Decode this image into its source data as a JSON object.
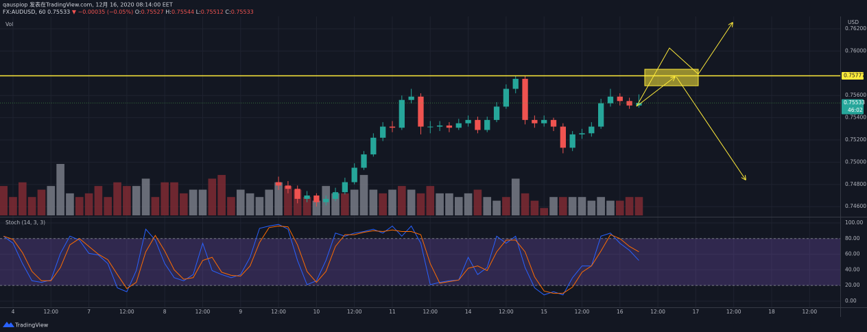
{
  "header": {
    "line1": "qauspiop 发表在TradingView.com, 12月 16, 2020 08:14:00 EET",
    "symbol": "FX:AUDUSD, 60",
    "price": "0.75533",
    "change": "▼ −0.00035 (−0.05%)",
    "ohlc": [
      {
        "label": "O:",
        "value": "0.75527"
      },
      {
        "label": "H:",
        "value": "0.75544"
      },
      {
        "label": "L:",
        "value": "0.75512"
      },
      {
        "label": "C:",
        "value": "0.75533"
      }
    ]
  },
  "footer": {
    "brand": "TradingView"
  },
  "chart_data": [
    {
      "type": "candlestick",
      "currency": "USD",
      "up_color": "#26a69a",
      "down_color": "#ef5350",
      "xlim": [
        -4.12,
        261.7
      ],
      "ylim": [
        0.74515,
        0.76305
      ],
      "yticks": [
        {
          "value": 0.746,
          "label": "0.74600"
        },
        {
          "value": 0.748,
          "label": "0.74800"
        },
        {
          "value": 0.75,
          "label": "0.75000"
        },
        {
          "value": 0.752,
          "label": "0.75200"
        },
        {
          "value": 0.754,
          "label": "0.75400"
        },
        {
          "value": 0.756,
          "label": "0.75600"
        },
        {
          "value": 0.76,
          "label": "0.76000"
        },
        {
          "value": 0.762,
          "label": "0.76200"
        }
      ],
      "candles": [
        [
          84,
          0.7482,
          0.7487,
          0.7475,
          0.7479
        ],
        [
          87,
          0.7479,
          0.7483,
          0.7472,
          0.7476
        ],
        [
          90,
          0.7476,
          0.7479,
          0.7463,
          0.7467
        ],
        [
          93,
          0.7467,
          0.7474,
          0.7464,
          0.747
        ],
        [
          96,
          0.747,
          0.7472,
          0.746,
          0.7464
        ],
        [
          99,
          0.7464,
          0.747,
          0.7461,
          0.7467
        ],
        [
          102,
          0.7467,
          0.7477,
          0.7465,
          0.7473
        ],
        [
          105,
          0.7473,
          0.7486,
          0.7471,
          0.7482
        ],
        [
          108,
          0.7482,
          0.7499,
          0.748,
          0.7495
        ],
        [
          111,
          0.7495,
          0.751,
          0.7493,
          0.7507
        ],
        [
          114,
          0.7507,
          0.7526,
          0.7505,
          0.7522
        ],
        [
          117,
          0.7522,
          0.7536,
          0.7519,
          0.7532
        ],
        [
          120,
          0.7532,
          0.7537,
          0.7527,
          0.7531
        ],
        [
          123,
          0.7531,
          0.756,
          0.7529,
          0.7556
        ],
        [
          126,
          0.7556,
          0.7566,
          0.7553,
          0.7559
        ],
        [
          129,
          0.7559,
          0.7562,
          0.7525,
          0.7532
        ],
        [
          132,
          0.7532,
          0.7537,
          0.7526,
          0.7532
        ],
        [
          135,
          0.7532,
          0.7537,
          0.7528,
          0.7533
        ],
        [
          138,
          0.7533,
          0.7536,
          0.7527,
          0.7531
        ],
        [
          141,
          0.7531,
          0.7539,
          0.7529,
          0.7535
        ],
        [
          144,
          0.7535,
          0.7542,
          0.7532,
          0.7538
        ],
        [
          147,
          0.7538,
          0.7541,
          0.7526,
          0.7529
        ],
        [
          150,
          0.7529,
          0.7541,
          0.7527,
          0.7538
        ],
        [
          153,
          0.7538,
          0.7554,
          0.7536,
          0.755
        ],
        [
          156,
          0.755,
          0.757,
          0.7548,
          0.7566
        ],
        [
          159,
          0.7566,
          0.7578,
          0.7562,
          0.7575
        ],
        [
          162,
          0.7575,
          0.7578,
          0.7534,
          0.7538
        ],
        [
          165,
          0.7538,
          0.7542,
          0.7531,
          0.7535
        ],
        [
          168,
          0.7535,
          0.7542,
          0.7532,
          0.7538
        ],
        [
          171,
          0.7538,
          0.754,
          0.7528,
          0.7532
        ],
        [
          174,
          0.7532,
          0.7535,
          0.7508,
          0.7513
        ],
        [
          177,
          0.7513,
          0.7528,
          0.751,
          0.7525
        ],
        [
          180,
          0.7525,
          0.753,
          0.7521,
          0.7526
        ],
        [
          183,
          0.7526,
          0.7536,
          0.7523,
          0.7532
        ],
        [
          186,
          0.7532,
          0.7557,
          0.753,
          0.7553
        ],
        [
          189,
          0.7553,
          0.7566,
          0.755,
          0.7559
        ],
        [
          192,
          0.7559,
          0.7562,
          0.7551,
          0.7555
        ],
        [
          195,
          0.7555,
          0.7558,
          0.7548,
          0.7551
        ],
        [
          198,
          0.7551,
          0.7561,
          0.7549,
          0.75533
        ]
      ],
      "volume": {
        "name": "Vol",
        "x": [
          -3,
          0,
          3,
          6,
          9,
          12,
          15,
          18,
          21,
          24,
          27,
          30,
          33,
          36,
          39,
          42,
          45,
          48,
          51,
          54,
          57,
          60,
          63,
          66,
          69,
          72,
          75,
          78,
          81,
          84,
          87,
          90,
          93,
          96,
          99,
          102,
          105,
          108,
          111,
          114,
          117,
          120,
          123,
          126,
          129,
          132,
          135,
          138,
          141,
          144,
          147,
          150,
          153,
          156,
          159,
          162,
          165,
          168,
          171,
          174,
          177,
          180,
          183,
          186,
          189,
          192,
          195,
          198
        ],
        "values": [
          40,
          25,
          45,
          25,
          35,
          40,
          70,
          30,
          25,
          30,
          40,
          25,
          45,
          40,
          40,
          50,
          25,
          45,
          45,
          30,
          35,
          35,
          50,
          55,
          25,
          35,
          30,
          25,
          35,
          45,
          40,
          35,
          25,
          20,
          40,
          30,
          30,
          35,
          55,
          35,
          30,
          35,
          40,
          35,
          30,
          40,
          30,
          30,
          25,
          30,
          35,
          25,
          20,
          25,
          50,
          30,
          20,
          10,
          25,
          25,
          25,
          25,
          20,
          25,
          20,
          20,
          25,
          25
        ]
      },
      "hline": 0.75777,
      "last_price": 0.75533,
      "countdown": "46:02"
    },
    {
      "type": "line",
      "title": "Stoch (14, 3, 3)",
      "xlim": [
        -4.12,
        261.7
      ],
      "ylim": [
        -7.9,
        106.1
      ],
      "yticks": [
        {
          "value": 0,
          "label": "0.00"
        },
        {
          "value": 20,
          "label": "20.00"
        },
        {
          "value": 40,
          "label": "40.00"
        },
        {
          "value": 60,
          "label": "60.00"
        },
        {
          "value": 80,
          "label": "80.00"
        },
        {
          "value": 100,
          "label": "100.00"
        }
      ],
      "xticks": [
        {
          "value": 0,
          "label": "4"
        },
        {
          "value": 12,
          "label": "12:00"
        },
        {
          "value": 24,
          "label": "7"
        },
        {
          "value": 36,
          "label": "12:00"
        },
        {
          "value": 48,
          "label": "8"
        },
        {
          "value": 60,
          "label": "12:00"
        },
        {
          "value": 72,
          "label": "9"
        },
        {
          "value": 84,
          "label": "12:00"
        },
        {
          "value": 96,
          "label": "10"
        },
        {
          "value": 108,
          "label": "12:00"
        },
        {
          "value": 120,
          "label": "11"
        },
        {
          "value": 132,
          "label": "12:00"
        },
        {
          "value": 144,
          "label": "14"
        },
        {
          "value": 156,
          "label": "12:00"
        },
        {
          "value": 168,
          "label": "15"
        },
        {
          "value": 180,
          "label": "12:00"
        },
        {
          "value": 192,
          "label": "16"
        },
        {
          "value": 204,
          "label": "12:00"
        },
        {
          "value": 216,
          "label": "17"
        },
        {
          "value": 228,
          "label": "12:00"
        },
        {
          "value": 240,
          "label": "18"
        },
        {
          "value": 252,
          "label": "12:00"
        }
      ],
      "band": [
        20,
        80
      ],
      "band_color": "#7e57c2",
      "x": [
        -3,
        0,
        3,
        6,
        9,
        12,
        15,
        18,
        21,
        24,
        27,
        30,
        33,
        36,
        39,
        42,
        45,
        48,
        51,
        54,
        57,
        60,
        63,
        66,
        69,
        72,
        75,
        78,
        81,
        84,
        87,
        90,
        93,
        96,
        99,
        102,
        105,
        108,
        111,
        114,
        117,
        120,
        123,
        126,
        129,
        132,
        135,
        138,
        141,
        144,
        147,
        150,
        153,
        156,
        159,
        162,
        165,
        168,
        171,
        174,
        177,
        180,
        183,
        186,
        189,
        192,
        195,
        198
      ],
      "series": [
        {
          "color": "#2962ff",
          "values": [
            83,
            74,
            48,
            26,
            24,
            27,
            61,
            83,
            78,
            61,
            59,
            48,
            17,
            12,
            39,
            92,
            78,
            48,
            30,
            26,
            34,
            74,
            39,
            34,
            30,
            34,
            56,
            93,
            96,
            98,
            92,
            52,
            21,
            26,
            52,
            87,
            83,
            87,
            89,
            92,
            87,
            96,
            83,
            96,
            74,
            21,
            24,
            26,
            27,
            56,
            34,
            43,
            83,
            74,
            83,
            43,
            17,
            8,
            12,
            8,
            30,
            45,
            45,
            83,
            87,
            74,
            65,
            52
          ]
        },
        {
          "color": "#ff6d00",
          "values": [
            83,
            79,
            62,
            38,
            26,
            26,
            43,
            72,
            80,
            70,
            60,
            53,
            34,
            16,
            24,
            63,
            84,
            64,
            40,
            28,
            30,
            52,
            56,
            37,
            33,
            32,
            45,
            75,
            94,
            96,
            95,
            72,
            38,
            24,
            38,
            70,
            85,
            85,
            88,
            90,
            89,
            91,
            89,
            89,
            85,
            48,
            23,
            25,
            27,
            42,
            45,
            39,
            63,
            78,
            78,
            63,
            31,
            13,
            10,
            10,
            18,
            37,
            45,
            64,
            85,
            80,
            70,
            63
          ]
        }
      ]
    }
  ]
}
